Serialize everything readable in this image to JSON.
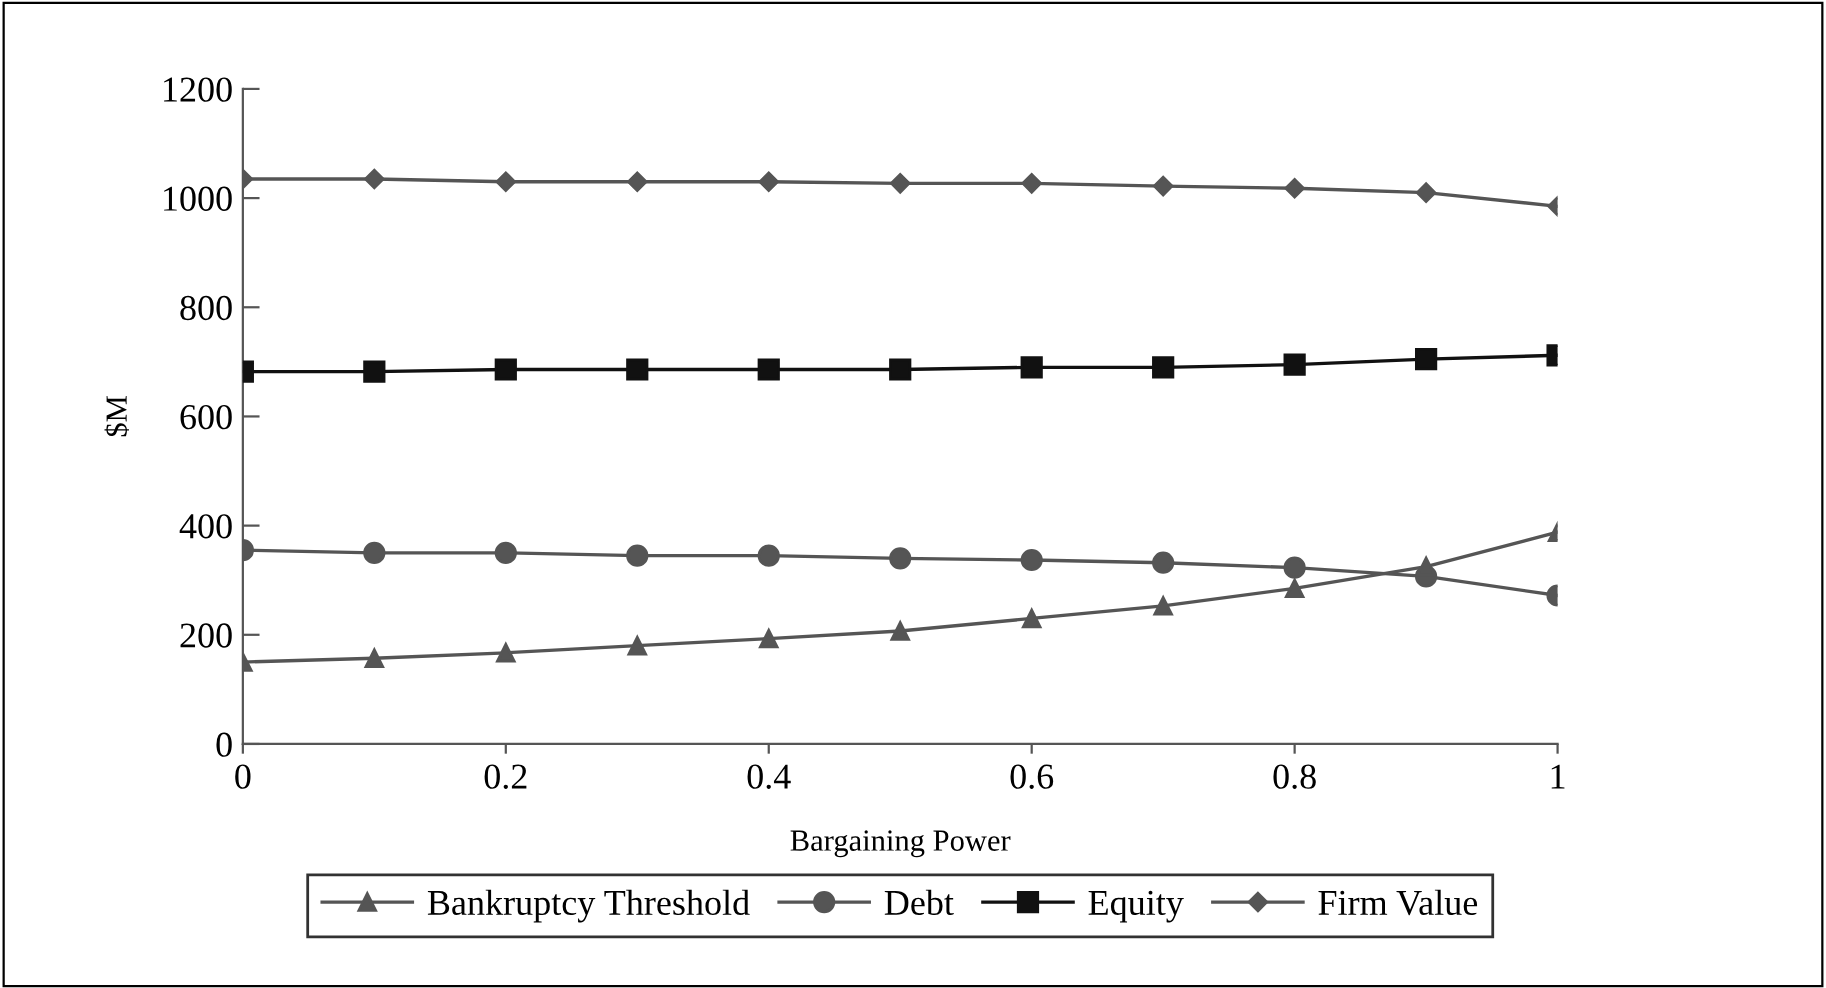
{
  "chart_data": {
    "type": "line",
    "xlabel": "Bargaining Power",
    "ylabel": "$M",
    "x": [
      0,
      0.1,
      0.2,
      0.3,
      0.4,
      0.5,
      0.6,
      0.7,
      0.8,
      0.9,
      1
    ],
    "xlim": [
      0,
      1
    ],
    "xticks": [
      0,
      0.2,
      0.4,
      0.6,
      0.8,
      1
    ],
    "ylim": [
      0,
      1200
    ],
    "yticks": [
      0,
      200,
      400,
      600,
      800,
      1000,
      1200
    ],
    "grid": false,
    "legend": "bottom",
    "series": [
      {
        "name": "Bankruptcy Threshold",
        "color": "#555555",
        "marker": "triangle",
        "values": [
          150,
          157,
          167,
          180,
          193,
          207,
          230,
          253,
          285,
          325,
          388
        ]
      },
      {
        "name": "Debt",
        "color": "#555555",
        "marker": "circle",
        "values": [
          355,
          350,
          350,
          345,
          345,
          340,
          337,
          332,
          323,
          307,
          272
        ]
      },
      {
        "name": "Equity",
        "color": "#111111",
        "marker": "square",
        "values": [
          682,
          682,
          686,
          686,
          686,
          686,
          690,
          690,
          695,
          705,
          712
        ]
      },
      {
        "name": "Firm Value",
        "color": "#555555",
        "marker": "diamond",
        "values": [
          1035,
          1035,
          1030,
          1030,
          1030,
          1027,
          1027,
          1022,
          1018,
          1010,
          985
        ]
      }
    ]
  }
}
